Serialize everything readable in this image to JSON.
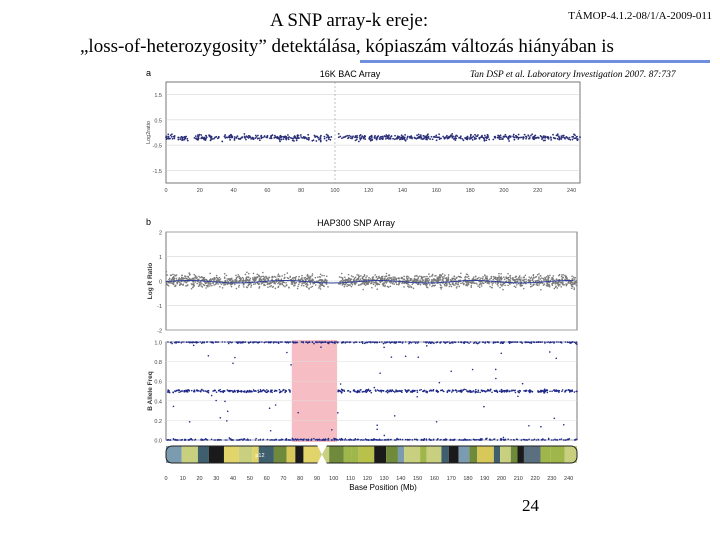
{
  "header": {
    "code": "TÁMOP-4.1.2-08/1/A-2009-011",
    "title_line1": "A SNP array-k ereje:",
    "title_line2": "„loss-of-heterozygosity” detektálása, kópiaszám változás hiányában is"
  },
  "citation": "Tan DSP et al. Laboratory Investigation 2007. 87:737",
  "page_number": "24",
  "colors": {
    "accent_rule": "#6f8ede",
    "bac_points": "#2a2f78",
    "snp_points": "#7a7a7a",
    "baf_points": "#1f2a8a",
    "loh_region": "#f4a7b0"
  },
  "chart_data": [
    {
      "type": "scatter",
      "panel_label": "a",
      "title": "16K BAC Array",
      "ylabel": "Log2ratio",
      "yticks": [
        "1.5",
        "0.5",
        "-0.5",
        "-1.5"
      ],
      "xticks": [
        "0",
        "20",
        "40",
        "60",
        "80",
        "100",
        "120",
        "140",
        "160",
        "180",
        "200",
        "220",
        "240"
      ],
      "ylim": [
        -2,
        2
      ],
      "xlim": [
        0,
        245
      ],
      "baseline": -0.2,
      "grid": true
    },
    {
      "type": "scatter",
      "panel_label": "b",
      "title": "HAP300 SNP Array",
      "ylabel": "Log R Ratio",
      "yticks": [
        "2",
        "1",
        "0",
        "-1",
        "-2"
      ],
      "ylim": [
        -2,
        2
      ],
      "xlim": [
        0,
        245
      ],
      "baseline": 0,
      "grid": true
    },
    {
      "type": "scatter",
      "ylabel": "B Allele Freq",
      "yticks": [
        "1.0",
        "0.8",
        "0.6",
        "0.4",
        "0.2",
        "0.0"
      ],
      "xticks": [
        "0",
        "10",
        "20",
        "30",
        "40",
        "50",
        "60",
        "70",
        "80",
        "90",
        "100",
        "110",
        "120",
        "130",
        "140",
        "150",
        "160",
        "170",
        "180",
        "190",
        "200",
        "210",
        "220",
        "230",
        "240"
      ],
      "xlabel": "Base Position (Mb)",
      "ylim": [
        0,
        1
      ],
      "xlim": [
        0,
        245
      ],
      "loh_region": [
        75,
        102
      ],
      "levels": [
        0,
        0.5,
        1
      ],
      "band_label": "p12",
      "grid": true
    }
  ]
}
